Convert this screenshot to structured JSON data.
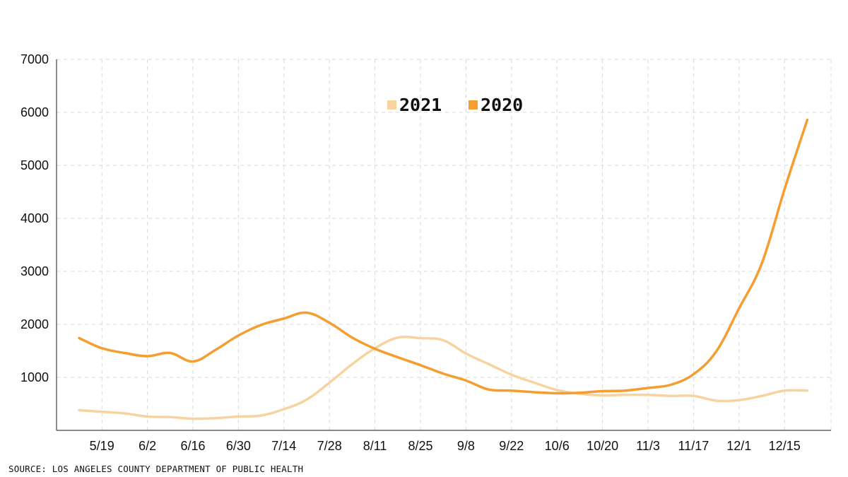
{
  "chart_data": {
    "type": "line",
    "x": [
      "5/12",
      "5/19",
      "5/26",
      "6/2",
      "6/9",
      "6/16",
      "6/23",
      "6/30",
      "7/7",
      "7/14",
      "7/21",
      "7/28",
      "8/4",
      "8/11",
      "8/18",
      "8/25",
      "9/1",
      "9/8",
      "9/15",
      "9/22",
      "9/29",
      "10/6",
      "10/13",
      "10/20",
      "10/27",
      "11/3",
      "11/10",
      "11/17",
      "11/24",
      "12/1",
      "12/8",
      "12/15",
      "12/22"
    ],
    "xticks": [
      "5/19",
      "6/2",
      "6/16",
      "6/30",
      "7/14",
      "7/28",
      "8/11",
      "8/25",
      "9/8",
      "9/22",
      "10/6",
      "10/20",
      "11/3",
      "11/17",
      "12/1",
      "12/15"
    ],
    "yticks": [
      1000,
      2000,
      3000,
      4000,
      5000,
      6000,
      7000
    ],
    "ylim": [
      0,
      7000
    ],
    "series": [
      {
        "name": "2021",
        "color": "#f7d3a0",
        "values": [
          380,
          350,
          320,
          260,
          250,
          220,
          230,
          260,
          280,
          400,
          580,
          900,
          1250,
          1550,
          1750,
          1740,
          1700,
          1450,
          1250,
          1050,
          900,
          760,
          690,
          660,
          670,
          670,
          650,
          650,
          560,
          570,
          650,
          750,
          750
        ]
      },
      {
        "name": "2020",
        "color": "#f59d2e",
        "values": [
          1740,
          1550,
          1460,
          1400,
          1460,
          1300,
          1520,
          1790,
          1990,
          2110,
          2220,
          2030,
          1750,
          1540,
          1380,
          1230,
          1070,
          940,
          770,
          750,
          720,
          700,
          710,
          740,
          750,
          800,
          860,
          1060,
          1490,
          2300,
          3150,
          4550,
          5860
        ]
      }
    ],
    "legend": "top-center"
  },
  "source": "SOURCE: LOS ANGELES COUNTY DEPARTMENT OF PUBLIC HEALTH"
}
